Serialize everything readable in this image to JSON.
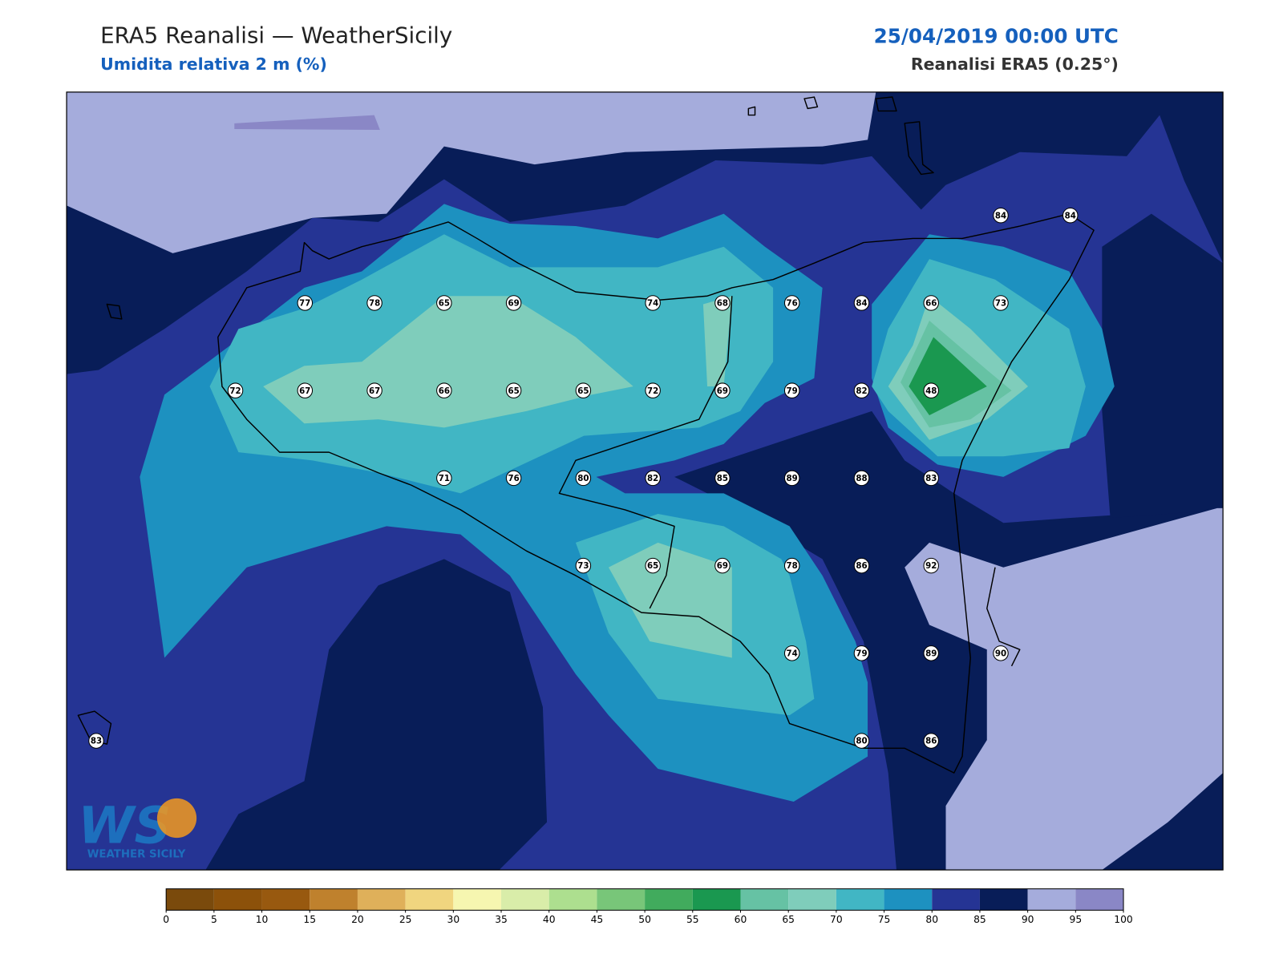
{
  "header": {
    "title": "ERA5 Reanalisi — WeatherSicily",
    "subtitle": "Umidita relativa 2 m (%)",
    "date": "25/04/2019 00:00 UTC",
    "source": "Reanalisi ERA5 (0.25°)"
  },
  "stations": [
    84,
    84,
    77,
    78,
    65,
    69,
    74,
    68,
    76,
    84,
    66,
    73,
    72,
    67,
    67,
    66,
    65,
    65,
    72,
    69,
    79,
    82,
    48,
    71,
    76,
    80,
    82,
    85,
    89,
    88,
    83,
    73,
    65,
    69,
    78,
    86,
    92,
    74,
    79,
    89,
    90,
    83,
    80,
    86
  ],
  "colorbar": {
    "ticks": [
      0,
      5,
      10,
      15,
      20,
      25,
      30,
      35,
      40,
      45,
      50,
      55,
      60,
      65,
      70,
      75,
      80,
      85,
      90,
      95,
      100
    ],
    "colors": [
      "#7a4a0c",
      "#8c510a",
      "#98590f",
      "#bf812d",
      "#dfb05a",
      "#f0d57f",
      "#f6f6b0",
      "#d9eda9",
      "#addf8f",
      "#78c679",
      "#41ab5d",
      "#1a9850",
      "#66c2a4",
      "#7fcdbb",
      "#41b6c4",
      "#1d91c0",
      "#253494",
      "#081d58",
      "#a5acdc",
      "#8a87c6"
    ]
  },
  "logo": {
    "mark": "WS",
    "text": "WEATHER SICILY"
  }
}
